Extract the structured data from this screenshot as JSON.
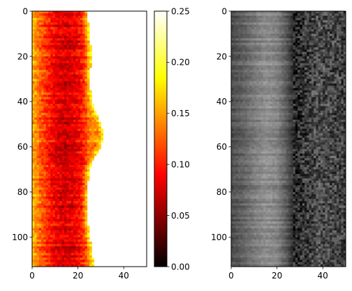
{
  "chart_data": [
    {
      "type": "heatmap",
      "title": "",
      "xlabel": "",
      "ylabel": "",
      "colormap": "hot",
      "xlim": [
        0,
        50
      ],
      "ylim": [
        113,
        0
      ],
      "xticks": [
        0,
        20,
        40
      ],
      "yticks": [
        0,
        20,
        40,
        60,
        80,
        100
      ],
      "colorbar": {
        "vmin": 0.0,
        "vmax": 0.25,
        "ticks": [
          "0.00",
          "0.05",
          "0.10",
          "0.15",
          "0.20",
          "0.25"
        ]
      },
      "description": "Data band occupies roughly x in [0, 27]; values beyond are at colormap max (white). Band bulges to x≈31 around y 48–62.",
      "band_edge_x": [
        [
          0,
          24
        ],
        [
          10,
          25
        ],
        [
          20,
          26
        ],
        [
          30,
          25
        ],
        [
          40,
          26
        ],
        [
          45,
          28
        ],
        [
          50,
          30
        ],
        [
          55,
          31
        ],
        [
          60,
          30
        ],
        [
          65,
          27
        ],
        [
          70,
          25
        ],
        [
          80,
          24
        ],
        [
          90,
          24
        ],
        [
          100,
          25
        ],
        [
          105,
          26
        ],
        [
          113,
          27
        ]
      ],
      "value_profile": [
        {
          "x": 0,
          "value": 0.16
        },
        {
          "x": 3,
          "value": 0.13
        },
        {
          "x": 6,
          "value": 0.11
        },
        {
          "x": 10,
          "value": 0.085
        },
        {
          "x": 14,
          "value": 0.075
        },
        {
          "x": 18,
          "value": 0.08
        },
        {
          "x": 22,
          "value": 0.1
        },
        {
          "x": 25,
          "value": 0.14
        }
      ]
    },
    {
      "type": "heatmap",
      "title": "",
      "xlabel": "",
      "ylabel": "",
      "colormap": "gray",
      "xlim": [
        0,
        50
      ],
      "ylim": [
        113,
        0
      ],
      "xticks": [
        0,
        20,
        40
      ],
      "yticks": [
        0,
        20,
        40,
        60,
        80,
        100
      ],
      "description": "Grayscale image: bright vertical band near x≈10–22, dark band near x≈26–32, speckled texture to the right.",
      "intensity_profile": [
        {
          "x": 0,
          "value": 0.3
        },
        {
          "x": 5,
          "value": 0.38
        },
        {
          "x": 10,
          "value": 0.48
        },
        {
          "x": 15,
          "value": 0.56
        },
        {
          "x": 20,
          "value": 0.52
        },
        {
          "x": 24,
          "value": 0.36
        },
        {
          "x": 28,
          "value": 0.14
        },
        {
          "x": 32,
          "value": 0.22
        },
        {
          "x": 38,
          "value": 0.3
        },
        {
          "x": 44,
          "value": 0.28
        },
        {
          "x": 50,
          "value": 0.25
        }
      ]
    }
  ]
}
